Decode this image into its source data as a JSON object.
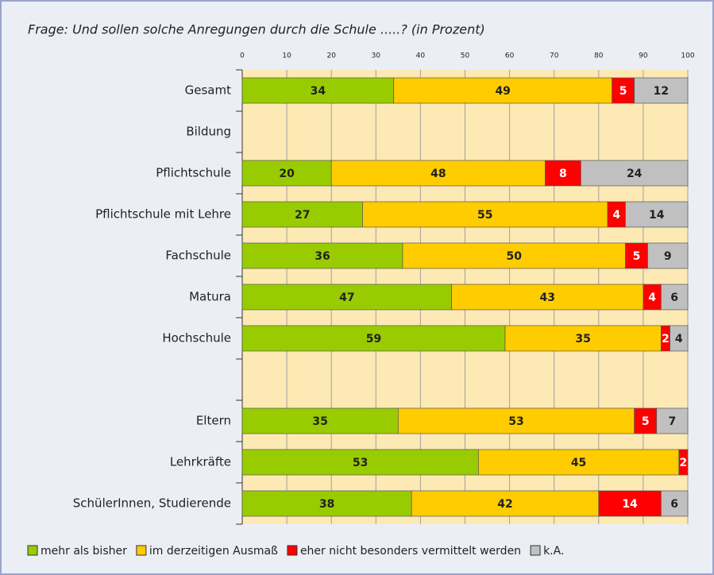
{
  "chart_data": {
    "type": "stacked-barh",
    "title": "Frage: Und sollen solche Anregungen durch die Schule .....? (in Prozent)",
    "categories": [
      "Gesamt",
      "Bildung",
      "Pflichtschule",
      "Pflichtschule mit Lehre",
      "Fachschule",
      "Matura",
      "Hochschule",
      null,
      "Eltern",
      "Lehrkräfte",
      "SchülerInnen, Studierende"
    ],
    "series": [
      {
        "name": "mehr als bisher",
        "color": "#99cc00",
        "label_color": "#222222",
        "values": [
          34,
          null,
          20,
          27,
          36,
          47,
          59,
          null,
          35,
          53,
          38
        ]
      },
      {
        "name": "im derzeitigen Ausmaß",
        "color": "#ffcc00",
        "label_color": "#222222",
        "values": [
          49,
          null,
          48,
          55,
          50,
          43,
          35,
          null,
          53,
          45,
          42
        ]
      },
      {
        "name": "eher nicht besonders vermittelt werden",
        "color": "#ff0000",
        "label_color": "#ffffff",
        "values": [
          5,
          null,
          8,
          4,
          5,
          4,
          2,
          null,
          5,
          2,
          14
        ]
      },
      {
        "name": "k.A.",
        "color": "#c0c0c0",
        "label_color": "#222222",
        "values": [
          12,
          null,
          24,
          14,
          9,
          6,
          4,
          null,
          7,
          null,
          6
        ]
      }
    ],
    "xlim": [
      0,
      100
    ],
    "xticks": [
      0,
      10,
      20,
      30,
      40,
      50,
      60,
      70,
      80,
      90,
      100
    ],
    "grid": true,
    "legend": "bottom"
  }
}
